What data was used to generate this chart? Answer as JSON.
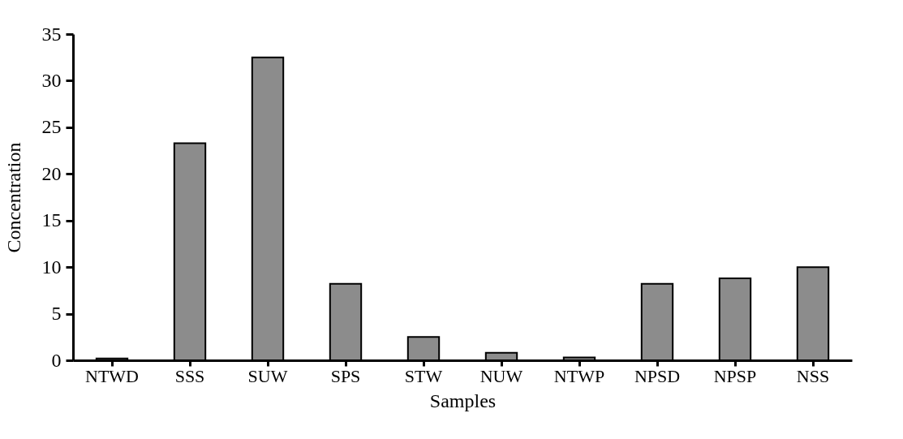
{
  "chart_data": {
    "type": "bar",
    "xlabel": "Samples",
    "ylabel": "Concentration",
    "categories": [
      "NTWD",
      "SSS",
      "SUW",
      "SPS",
      "STW",
      "NUW",
      "NTWP",
      "NPSD",
      "NPSP",
      "NSS"
    ],
    "values": [
      0.2,
      23.3,
      32.5,
      8.2,
      2.5,
      0.8,
      0.3,
      8.2,
      8.8,
      10.0
    ],
    "color": "#8c8c8c",
    "ylim": [
      0,
      35
    ],
    "yticks": [
      0,
      5,
      10,
      15,
      20,
      25,
      30,
      35
    ],
    "grid": false,
    "legend": false
  }
}
